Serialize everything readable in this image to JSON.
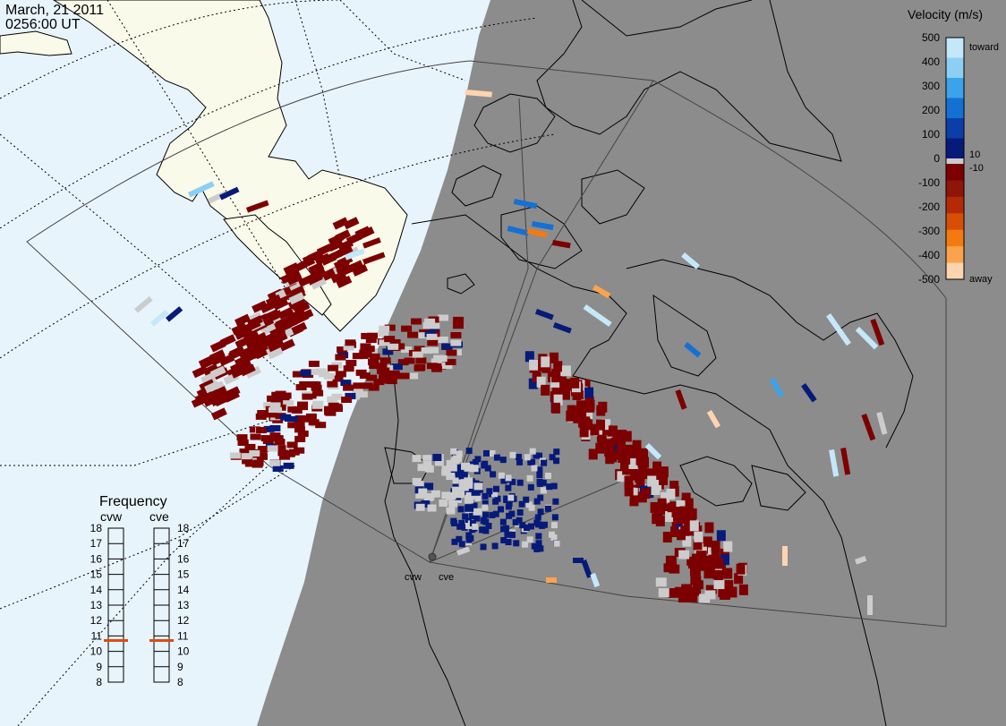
{
  "header": {
    "date": "March, 21 2011",
    "time": "0256:00 UT"
  },
  "colorbar": {
    "title": "Velocity (m/s)",
    "ticks": [
      "500",
      "400",
      "300",
      "200",
      "100",
      "0",
      "-100",
      "-200",
      "-300",
      "-400",
      "-500"
    ],
    "label_toward": "toward",
    "label_away": "away",
    "label_pos": "10",
    "label_neg": "-10",
    "colors": [
      "#c4e8fa",
      "#8ccff2",
      "#3aa3ea",
      "#1570d4",
      "#0d3ea8",
      "#061a7a",
      "#cccccc",
      "#7d0000",
      "#8e1508",
      "#b42a08",
      "#d74e04",
      "#f47a10",
      "#fba34c",
      "#fdd4b0"
    ]
  },
  "frequency": {
    "title": "Frequency",
    "radar_left": "cvw",
    "radar_right": "cve",
    "ticks": [
      "18",
      "17",
      "16",
      "15",
      "14",
      "13",
      "12",
      "11",
      "10",
      "9",
      "8"
    ],
    "selected_left_mhz": 10.7,
    "selected_right_mhz": 10.7,
    "marker_color": "#e04a10"
  },
  "map": {
    "radar_labels": [
      "cvw",
      "cve"
    ],
    "colors": {
      "ocean_day": "#e8f4fc",
      "land_day": "#fafaeb",
      "night": "#8c8c8c",
      "ground_scatter": "#cccccc"
    }
  }
}
